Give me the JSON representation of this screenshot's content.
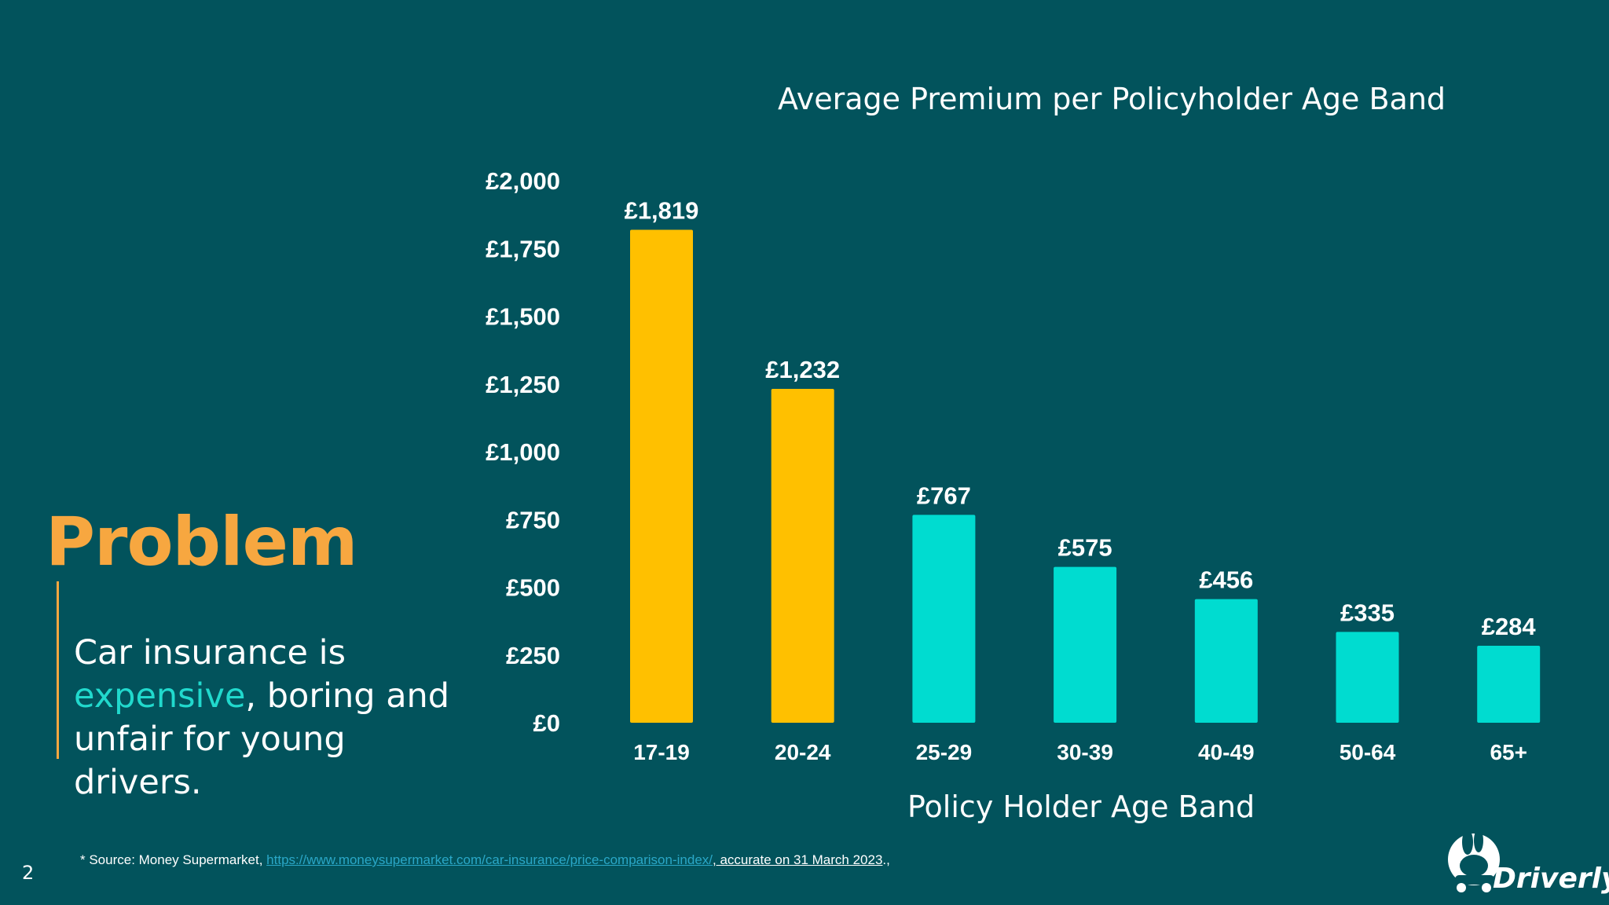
{
  "chart_data": {
    "type": "bar",
    "title": "Average Premium per Policyholder Age Band",
    "xlabel": "Policy Holder Age Band",
    "ylabel": "",
    "categories": [
      "17-19",
      "20-24",
      "25-29",
      "30-39",
      "40-49",
      "50-64",
      "65+"
    ],
    "values": [
      1819,
      1232,
      767,
      575,
      456,
      335,
      284
    ],
    "data_labels": [
      "£1,819",
      "£1,232",
      "£767",
      "£575",
      "£456",
      "£335",
      "£284"
    ],
    "ylim": [
      0,
      2000
    ],
    "yticks": [
      0,
      250,
      500,
      750,
      1000,
      1250,
      1500,
      1750,
      2000
    ],
    "ytick_labels": [
      "£0",
      "£250",
      "£500",
      "£750",
      "£1,000",
      "£1,250",
      "£1,500",
      "£1,750",
      "£2,000"
    ],
    "bar_colors": [
      "#ffc000",
      "#ffc000",
      "#00dcd0",
      "#00dcd0",
      "#00dcd0",
      "#00dcd0",
      "#00dcd0"
    ],
    "grid": false,
    "legend": "none"
  },
  "panel": {
    "title": "Problem",
    "text_before": "Car insurance is ",
    "text_highlight": "expensive",
    "text_after": ", boring and unfair for young drivers."
  },
  "footer": {
    "source_prefix": "* Source: Money Supermarket, ",
    "source_link": "https://www.moneysupermarket.com/car-insurance/price-comparison-index/",
    "source_suffix": ", accurate on 31 March 2023",
    "source_tail": ".,",
    "page_number": "2"
  },
  "logo": {
    "text": "Driverly",
    "icon": "rabbit-car-icon"
  },
  "colors": {
    "background": "#02535c",
    "accent_orange": "#f7a740",
    "accent_teal": "#21d9cd"
  }
}
